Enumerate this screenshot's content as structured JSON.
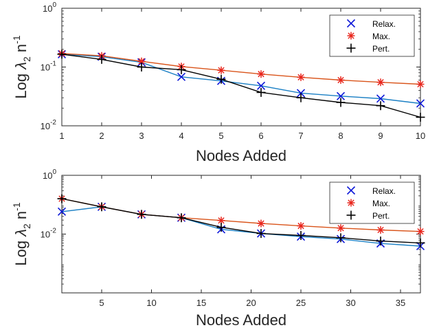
{
  "chart_data": [
    {
      "type": "line",
      "title": "",
      "xlabel": "Nodes Added",
      "ylabel_prefix": "Log ",
      "ylabel_symbol": "λ",
      "ylabel_sub": "2",
      "ylabel_n": " n",
      "ylabel_sup": "-1",
      "yscale": "log",
      "ylim": [
        0.01,
        1
      ],
      "xlim": [
        1,
        10
      ],
      "legend_position": "top-right",
      "x_ticks": [
        "1",
        "2",
        "3",
        "4",
        "5",
        "6",
        "7",
        "8",
        "9",
        "10"
      ],
      "x_tick_values": [
        1,
        2,
        3,
        4,
        5,
        6,
        7,
        8,
        9,
        10
      ],
      "y_ticks": [
        {
          "base": "10",
          "exp": "0",
          "value": 1
        },
        {
          "base": "10",
          "exp": "-1",
          "value": 0.1
        },
        {
          "base": "10",
          "exp": "-2",
          "value": 0.01
        }
      ],
      "x": [
        1,
        2,
        3,
        4,
        5,
        6,
        7,
        8,
        9,
        10
      ],
      "series": [
        {
          "name": "Relax.",
          "marker": "x",
          "color": "#0b16d8",
          "line_color": "#1a7fc4",
          "values": [
            0.165,
            0.15,
            0.12,
            0.068,
            0.058,
            0.048,
            0.036,
            0.032,
            0.029,
            0.024
          ]
        },
        {
          "name": "Max.",
          "marker": "asterisk",
          "color": "#e8261c",
          "line_color": "#d95319",
          "values": [
            0.17,
            0.155,
            0.125,
            0.102,
            0.088,
            0.076,
            0.067,
            0.06,
            0.055,
            0.051
          ]
        },
        {
          "name": "Pert.",
          "marker": "plus",
          "color": "#000000",
          "line_color": "#000000",
          "values": [
            0.165,
            0.135,
            0.1,
            0.09,
            0.062,
            0.037,
            0.03,
            0.025,
            0.022,
            0.014
          ]
        }
      ]
    },
    {
      "type": "line",
      "title": "",
      "xlabel": "Nodes Added",
      "ylabel_prefix": "Log ",
      "ylabel_symbol": "λ",
      "ylabel_sub": "2",
      "ylabel_n": " n",
      "ylabel_sup": "-1",
      "yscale": "log",
      "ylim": [
        0.0001,
        1
      ],
      "xlim": [
        1,
        37
      ],
      "legend_position": "top-right",
      "x_ticks": [
        "5",
        "10",
        "15",
        "20",
        "25",
        "30",
        "35"
      ],
      "x_tick_values": [
        5,
        10,
        15,
        20,
        25,
        30,
        35
      ],
      "y_ticks": [
        {
          "base": "10",
          "exp": "0",
          "value": 1
        },
        {
          "base": "10",
          "exp": "-2",
          "value": 0.01
        }
      ],
      "x": [
        1,
        5,
        9,
        13,
        17,
        21,
        25,
        29,
        33,
        37
      ],
      "series": [
        {
          "name": "Relax.",
          "marker": "x",
          "color": "#0b16d8",
          "line_color": "#1a7fc4",
          "values": [
            0.058,
            0.085,
            0.047,
            0.036,
            0.0145,
            0.0105,
            0.0082,
            0.0068,
            0.0048,
            0.0039
          ]
        },
        {
          "name": "Max.",
          "marker": "asterisk",
          "color": "#e8261c",
          "line_color": "#d95319",
          "values": [
            0.16,
            0.085,
            0.047,
            0.036,
            0.029,
            0.023,
            0.019,
            0.016,
            0.0138,
            0.0123
          ]
        },
        {
          "name": "Pert.",
          "marker": "plus",
          "color": "#000000",
          "line_color": "#000000",
          "values": [
            0.16,
            0.085,
            0.047,
            0.036,
            0.017,
            0.0105,
            0.009,
            0.0075,
            0.0058,
            0.005
          ]
        }
      ]
    }
  ]
}
